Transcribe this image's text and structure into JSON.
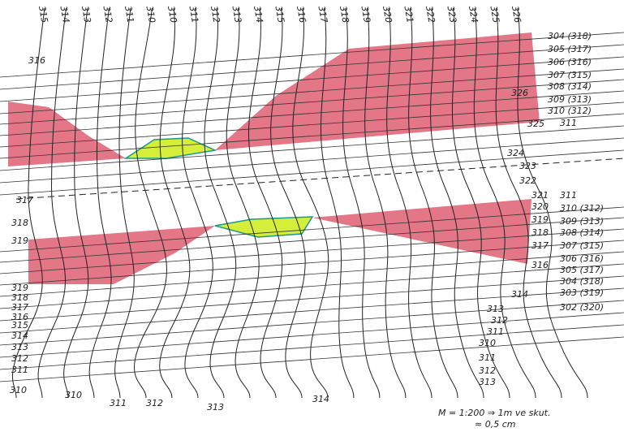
{
  "top_labels": [
    "315",
    "314",
    "313",
    "312",
    "311",
    "310",
    "310",
    "311",
    "312",
    "313",
    "314",
    "315",
    "316",
    "317",
    "318",
    "319",
    "320",
    "321",
    "322",
    "323",
    "324",
    "325",
    "326"
  ],
  "right_labels": [
    "304 (318)",
    "305 (317)",
    "306 (316)",
    "307 (315)",
    "308 (314)",
    "309 (313)",
    "310 (312)",
    "311",
    "326",
    "325",
    "324",
    "323",
    "322",
    "321",
    "311",
    "320",
    "310 (312)",
    "319",
    "309 (313)",
    "318",
    "308 (314)",
    "317",
    "307 (315)",
    "316",
    "306 (316)",
    "305 (317)",
    "304 (318)",
    "314",
    "303 (319)",
    "313",
    "302 (320)",
    "312",
    "311",
    "310",
    "311",
    "312",
    "313",
    "314"
  ],
  "left_labels": [
    "316",
    "317",
    "318",
    "319",
    "319",
    "318",
    "317",
    "316",
    "315",
    "314",
    "313",
    "312",
    "311",
    "310",
    "310",
    "311",
    "312",
    "313"
  ],
  "scale_note": {
    "line1": "M = 1:200 ⇒ 1m ve skut.",
    "line2": "≈ 0,5 cm"
  }
}
